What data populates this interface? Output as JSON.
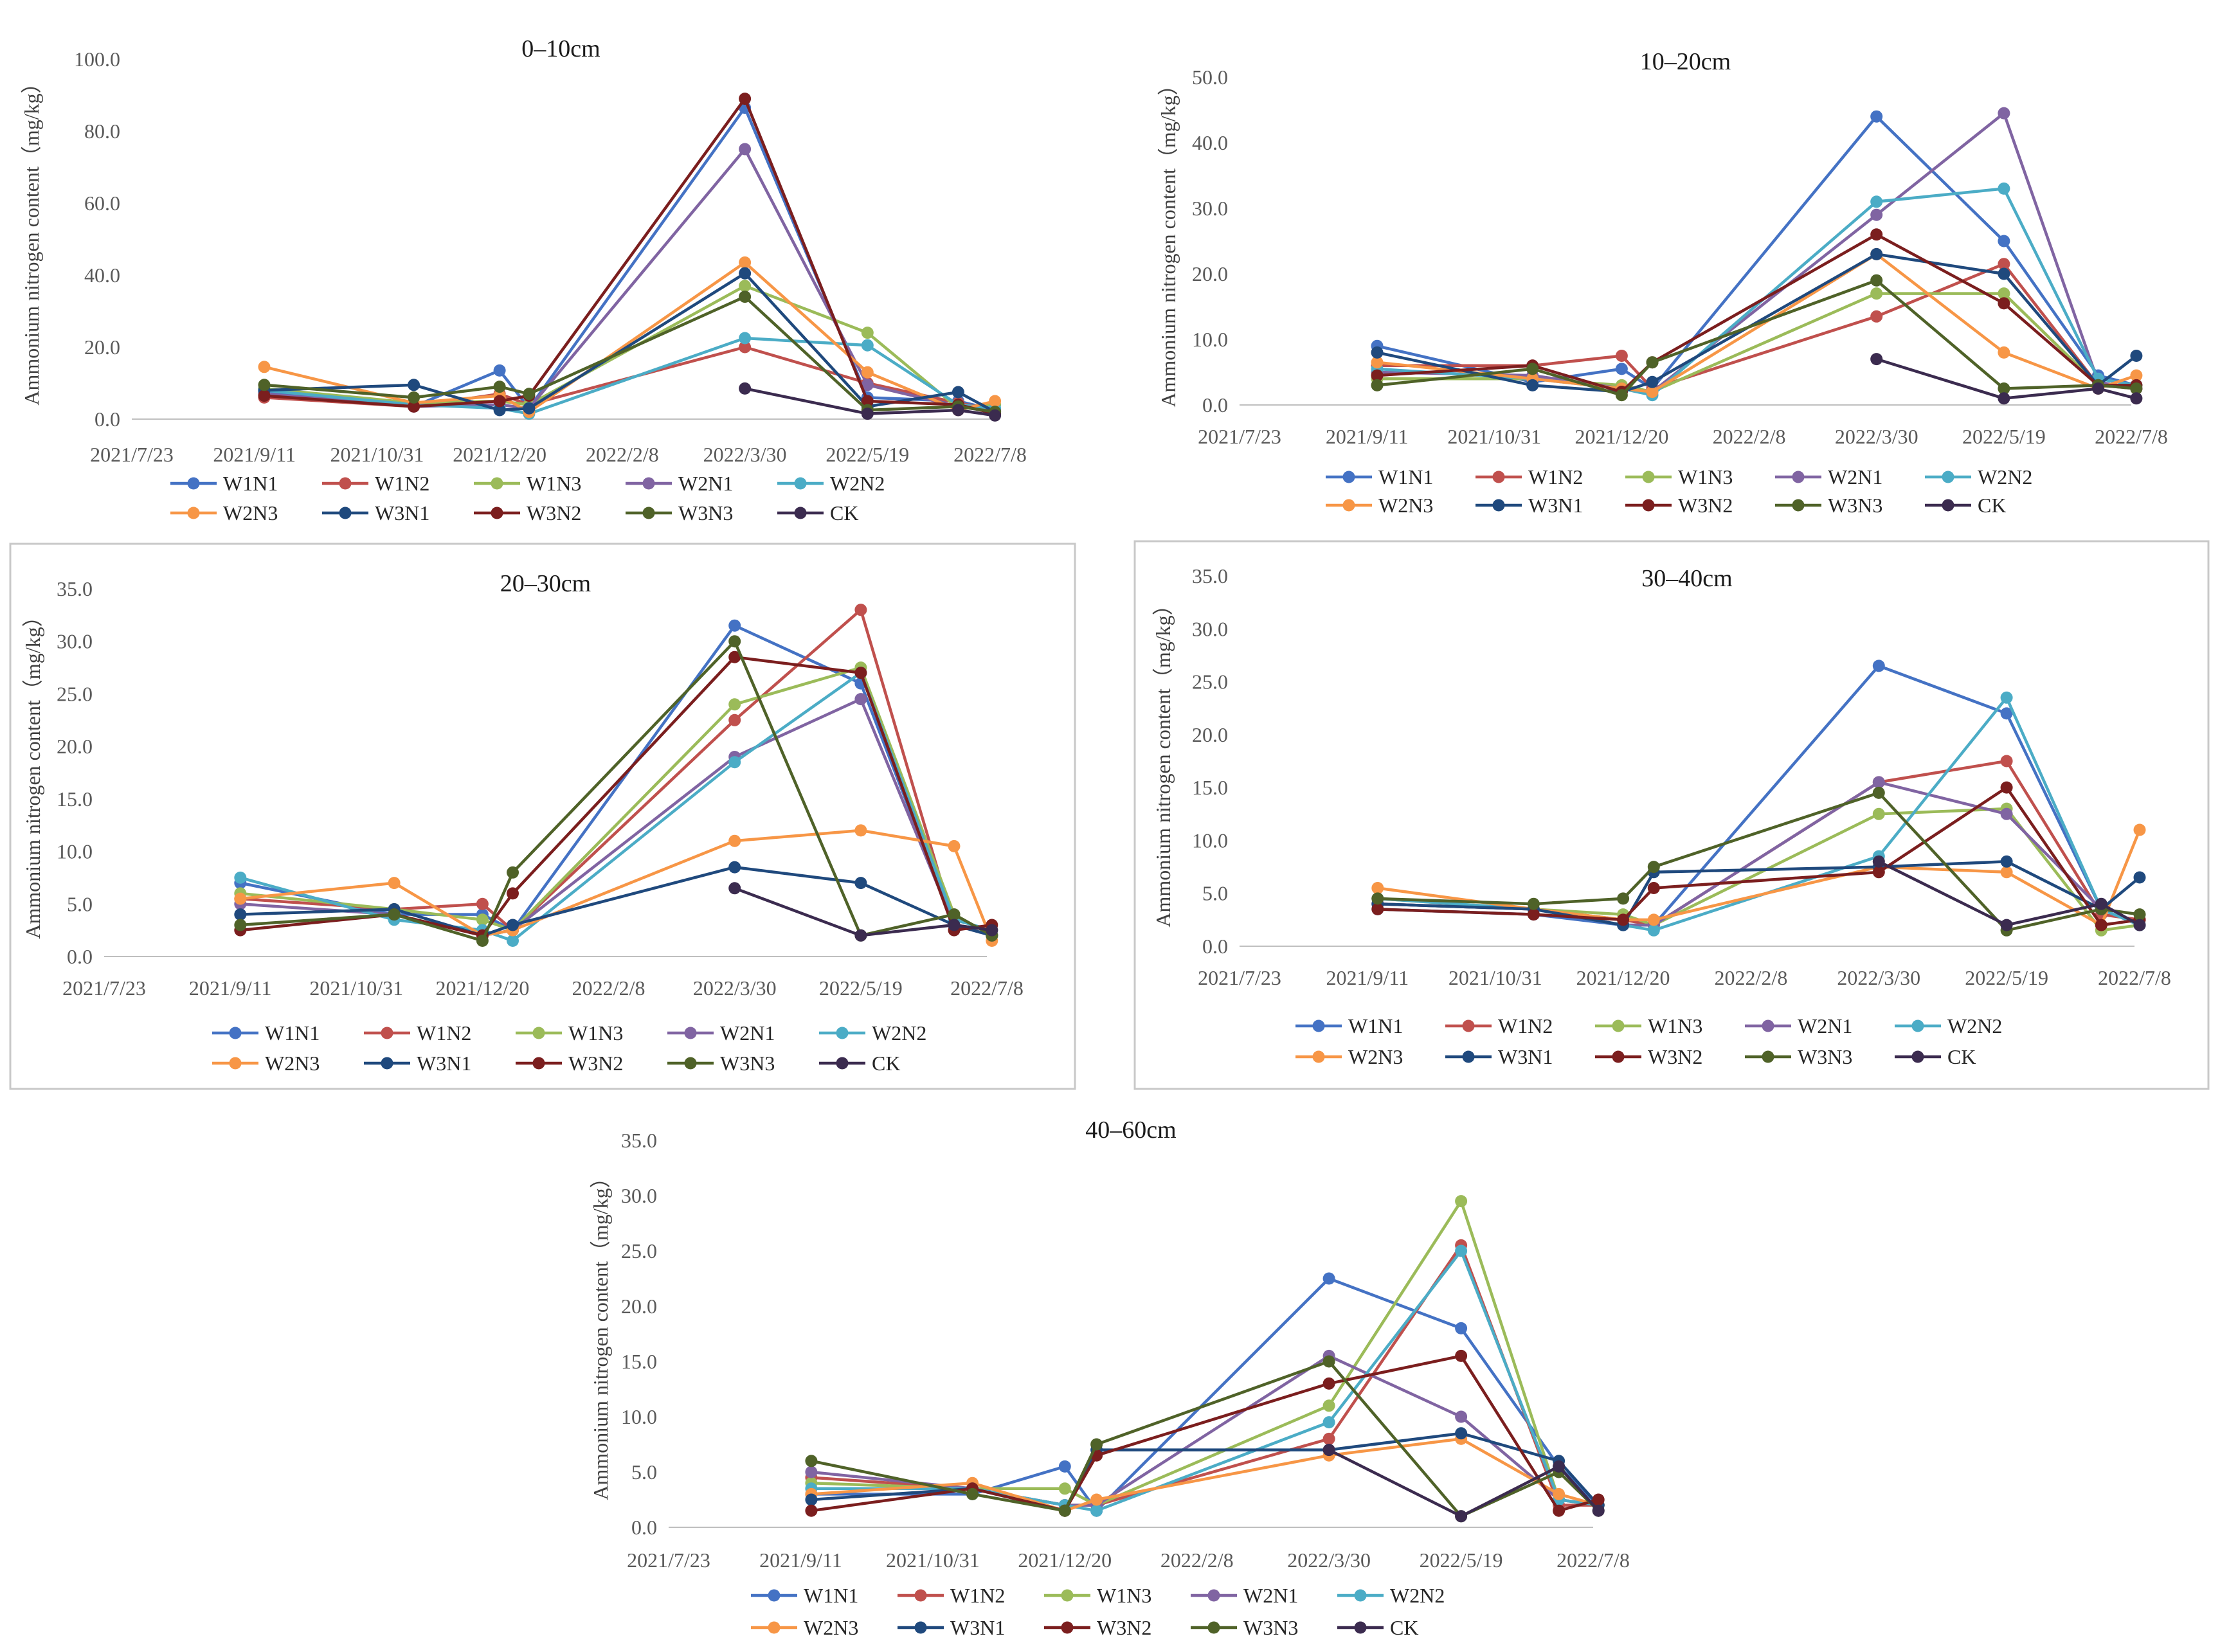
{
  "figure_colors": {
    "W1N1": "#4472C4",
    "W1N2": "#C0504D",
    "W1N3": "#9BBB59",
    "W2N1": "#8064A2",
    "W2N2": "#4BACC6",
    "W2N3": "#F79646",
    "W3N1": "#1F497D",
    "W3N2": "#7B1E1E",
    "W3N3": "#4F6228",
    "CK": "#3B2B4F"
  },
  "chart_data": [
    {
      "type": "line",
      "title": "0–10cm",
      "ylabel": "Ammonium nitrogen content（mg/kg）",
      "ylim": [
        0,
        100
      ],
      "ytick_labels": [
        "0.0",
        "20.0",
        "40.0",
        "60.0",
        "80.0",
        "100.0"
      ],
      "xtick_labels": [
        "2021/7/23",
        "2021/9/11",
        "2021/10/31",
        "2021/12/20",
        "2022/2/8",
        "2022/3/30",
        "2022/5/19",
        "2022/7/8"
      ],
      "x": [
        "2021/9/15",
        "2021/11/15",
        "2021/12/20",
        "2022/1/1",
        "2022/3/30",
        "2022/5/19",
        "2022/6/25",
        "2022/7/10"
      ],
      "series": [
        {
          "name": "W1N1",
          "values": [
            7.5,
            3.5,
            13.5,
            3.0,
            86.5,
            6.0,
            5.0,
            2.5
          ]
        },
        {
          "name": "W1N2",
          "values": [
            6.0,
            3.5,
            7.0,
            4.0,
            20.0,
            10.0,
            4.5,
            2.5
          ]
        },
        {
          "name": "W1N3",
          "values": [
            8.5,
            4.5,
            5.0,
            4.0,
            37.0,
            24.0,
            3.0,
            4.0
          ]
        },
        {
          "name": "W2N1",
          "values": [
            7.0,
            3.5,
            4.0,
            3.0,
            75.0,
            9.5,
            3.5,
            2.0
          ]
        },
        {
          "name": "W2N2",
          "values": [
            8.0,
            4.0,
            3.0,
            1.5,
            22.5,
            20.5,
            4.0,
            3.0
          ]
        },
        {
          "name": "W2N3",
          "values": [
            14.5,
            4.5,
            6.5,
            2.0,
            43.5,
            13.0,
            2.5,
            5.0
          ]
        },
        {
          "name": "W3N1",
          "values": [
            8.0,
            9.5,
            2.5,
            3.0,
            40.5,
            3.5,
            7.5,
            2.0
          ]
        },
        {
          "name": "W3N2",
          "values": [
            6.5,
            3.5,
            5.0,
            6.5,
            89.0,
            5.0,
            4.0,
            1.5
          ]
        },
        {
          "name": "W3N3",
          "values": [
            9.5,
            6.0,
            9.0,
            7.0,
            34.0,
            2.5,
            3.5,
            2.0
          ]
        },
        {
          "name": "CK",
          "values": [
            null,
            null,
            null,
            null,
            8.5,
            1.5,
            2.5,
            1.0
          ]
        }
      ],
      "legend_rows": [
        [
          "W1N1",
          "W1N2",
          "W1N3",
          "W2N1",
          "W2N2"
        ],
        [
          "W2N3",
          "W3N1",
          "W3N2",
          "W3N3",
          "CK"
        ]
      ]
    },
    {
      "type": "line",
      "title": "10–20cm",
      "ylabel": "Ammonium nitrogen content（mg/kg）",
      "ylim": [
        0,
        50
      ],
      "ytick_labels": [
        "0.0",
        "10.0",
        "20.0",
        "30.0",
        "40.0",
        "50.0"
      ],
      "xtick_labels": [
        "2021/7/23",
        "2021/9/11",
        "2021/10/31",
        "2021/12/20",
        "2022/2/8",
        "2022/3/30",
        "2022/5/19",
        "2022/7/8"
      ],
      "x": [
        "2021/9/15",
        "2021/11/15",
        "2021/12/20",
        "2022/1/1",
        "2022/3/30",
        "2022/5/19",
        "2022/6/25",
        "2022/7/10"
      ],
      "series": [
        {
          "name": "W1N1",
          "values": [
            9.0,
            3.5,
            5.5,
            2.5,
            44.0,
            25.0,
            4.5,
            3.0
          ]
        },
        {
          "name": "W1N2",
          "values": [
            6.0,
            6.0,
            7.5,
            2.5,
            13.5,
            21.5,
            3.0,
            2.5
          ]
        },
        {
          "name": "W1N3",
          "values": [
            4.0,
            4.0,
            3.0,
            2.0,
            17.0,
            17.0,
            3.0,
            3.0
          ]
        },
        {
          "name": "W2N1",
          "values": [
            5.0,
            4.5,
            2.5,
            2.0,
            29.0,
            44.5,
            3.5,
            2.5
          ]
        },
        {
          "name": "W2N2",
          "values": [
            5.5,
            4.0,
            2.5,
            1.5,
            31.0,
            33.0,
            4.0,
            3.0
          ]
        },
        {
          "name": "W2N3",
          "values": [
            6.5,
            4.0,
            2.5,
            2.0,
            23.0,
            8.0,
            2.5,
            4.5
          ]
        },
        {
          "name": "W3N1",
          "values": [
            8.0,
            3.0,
            2.0,
            3.5,
            23.0,
            20.0,
            3.0,
            7.5
          ]
        },
        {
          "name": "W3N2",
          "values": [
            4.5,
            6.0,
            2.0,
            6.5,
            26.0,
            15.5,
            3.0,
            3.0
          ]
        },
        {
          "name": "W3N3",
          "values": [
            3.0,
            5.5,
            1.5,
            6.5,
            19.0,
            2.5,
            3.0,
            2.5
          ]
        },
        {
          "name": "CK",
          "values": [
            null,
            null,
            null,
            null,
            7.0,
            1.0,
            2.5,
            1.0
          ]
        }
      ],
      "legend_rows": [
        [
          "W1N1",
          "W1N2",
          "W1N3",
          "W2N1",
          "W2N2"
        ],
        [
          "W2N3",
          "W3N1",
          "W3N2",
          "W3N3",
          "CK"
        ]
      ]
    },
    {
      "type": "line",
      "title": "20–30cm",
      "ylabel": "Ammonium nitrogen content（mg/kg）",
      "ylim": [
        0,
        35
      ],
      "ytick_labels": [
        "0.0",
        "5.0",
        "10.0",
        "15.0",
        "20.0",
        "25.0",
        "30.0",
        "35.0"
      ],
      "xtick_labels": [
        "2021/7/23",
        "2021/9/11",
        "2021/10/31",
        "2021/12/20",
        "2022/2/8",
        "2022/3/30",
        "2022/5/19",
        "2022/7/8"
      ],
      "x": [
        "2021/9/15",
        "2021/11/15",
        "2021/12/20",
        "2022/1/1",
        "2022/3/30",
        "2022/5/19",
        "2022/6/25",
        "2022/7/10"
      ],
      "series": [
        {
          "name": "W1N1",
          "values": [
            7.0,
            4.0,
            4.0,
            2.5,
            31.5,
            26.0,
            3.0,
            2.0
          ]
        },
        {
          "name": "W1N2",
          "values": [
            5.5,
            4.5,
            5.0,
            2.5,
            22.5,
            33.0,
            3.0,
            2.5
          ]
        },
        {
          "name": "W1N3",
          "values": [
            6.0,
            4.5,
            3.5,
            2.5,
            24.0,
            27.5,
            4.0,
            2.0
          ]
        },
        {
          "name": "W2N1",
          "values": [
            5.0,
            4.0,
            2.0,
            2.5,
            19.0,
            24.5,
            3.0,
            2.0
          ]
        },
        {
          "name": "W2N2",
          "values": [
            7.5,
            3.5,
            2.5,
            1.5,
            18.5,
            27.0,
            3.5,
            2.5
          ]
        },
        {
          "name": "W2N3",
          "values": [
            5.5,
            7.0,
            2.0,
            2.5,
            11.0,
            12.0,
            10.5,
            1.5
          ]
        },
        {
          "name": "W3N1",
          "values": [
            4.0,
            4.5,
            2.0,
            3.0,
            8.5,
            7.0,
            3.0,
            2.0
          ]
        },
        {
          "name": "W3N2",
          "values": [
            2.5,
            4.0,
            2.0,
            6.0,
            28.5,
            27.0,
            2.5,
            3.0
          ]
        },
        {
          "name": "W3N3",
          "values": [
            3.0,
            4.0,
            1.5,
            8.0,
            30.0,
            2.0,
            4.0,
            2.0
          ]
        },
        {
          "name": "CK",
          "values": [
            null,
            null,
            null,
            null,
            6.5,
            2.0,
            3.0,
            2.5
          ]
        }
      ],
      "legend_rows": [
        [
          "W1N1",
          "W1N2",
          "W1N3",
          "W2N1",
          "W2N2"
        ],
        [
          "W2N3",
          "W3N1",
          "W3N2",
          "W3N3",
          "CK"
        ]
      ]
    },
    {
      "type": "line",
      "title": "30–40cm",
      "ylabel": "Ammonium nitrogen content（mg/kg）",
      "ylim": [
        0,
        35
      ],
      "ytick_labels": [
        "0.0",
        "5.0",
        "10.0",
        "15.0",
        "20.0",
        "25.0",
        "30.0",
        "35.0"
      ],
      "xtick_labels": [
        "2021/7/23",
        "2021/9/11",
        "2021/10/31",
        "2021/12/20",
        "2022/2/8",
        "2022/3/30",
        "2022/5/19",
        "2022/7/8"
      ],
      "x": [
        "2021/9/15",
        "2021/11/15",
        "2021/12/20",
        "2022/1/1",
        "2022/3/30",
        "2022/5/19",
        "2022/6/25",
        "2022/7/10"
      ],
      "series": [
        {
          "name": "W1N1",
          "values": [
            3.5,
            3.0,
            2.0,
            2.0,
            26.5,
            22.0,
            3.5,
            2.0
          ]
        },
        {
          "name": "W1N2",
          "values": [
            4.0,
            3.5,
            2.5,
            2.0,
            15.5,
            17.5,
            3.0,
            2.5
          ]
        },
        {
          "name": "W1N3",
          "values": [
            4.5,
            3.5,
            3.0,
            2.0,
            12.5,
            13.0,
            1.5,
            2.0
          ]
        },
        {
          "name": "W2N1",
          "values": [
            4.0,
            3.5,
            2.0,
            2.0,
            15.5,
            12.5,
            3.5,
            2.0
          ]
        },
        {
          "name": "W2N2",
          "values": [
            4.5,
            3.5,
            2.0,
            1.5,
            8.5,
            23.5,
            3.5,
            2.0
          ]
        },
        {
          "name": "W2N3",
          "values": [
            5.5,
            3.5,
            2.5,
            2.5,
            7.5,
            7.0,
            2.0,
            11.0
          ]
        },
        {
          "name": "W3N1",
          "values": [
            4.0,
            3.5,
            2.0,
            7.0,
            7.5,
            8.0,
            3.5,
            6.5
          ]
        },
        {
          "name": "W3N2",
          "values": [
            3.5,
            3.0,
            2.5,
            5.5,
            7.0,
            15.0,
            2.0,
            2.5
          ]
        },
        {
          "name": "W3N3",
          "values": [
            4.5,
            4.0,
            4.5,
            7.5,
            14.5,
            1.5,
            3.5,
            3.0
          ]
        },
        {
          "name": "CK",
          "values": [
            null,
            null,
            null,
            null,
            8.0,
            2.0,
            4.0,
            2.0
          ]
        }
      ],
      "legend_rows": [
        [
          "W1N1",
          "W1N2",
          "W1N3",
          "W2N1",
          "W2N2"
        ],
        [
          "W2N3",
          "W3N1",
          "W3N2",
          "W3N3",
          "CK"
        ]
      ]
    },
    {
      "type": "line",
      "title": "40–60cm",
      "ylabel": "Ammonium nitrogen content（mg/kg）",
      "ylim": [
        0,
        35
      ],
      "ytick_labels": [
        "0.0",
        "5.0",
        "10.0",
        "15.0",
        "20.0",
        "25.0",
        "30.0",
        "35.0"
      ],
      "xtick_labels": [
        "2021/7/23",
        "2021/9/11",
        "2021/10/31",
        "2021/12/20",
        "2022/2/8",
        "2022/3/30",
        "2022/5/19",
        "2022/7/8"
      ],
      "x": [
        "2021/9/15",
        "2021/11/15",
        "2021/12/20",
        "2022/1/1",
        "2022/3/30",
        "2022/5/19",
        "2022/6/25",
        "2022/7/10"
      ],
      "series": [
        {
          "name": "W1N1",
          "values": [
            3.0,
            3.0,
            5.5,
            1.5,
            22.5,
            18.0,
            5.5,
            2.0
          ]
        },
        {
          "name": "W1N2",
          "values": [
            4.5,
            3.5,
            2.0,
            2.0,
            8.0,
            25.5,
            2.0,
            2.0
          ]
        },
        {
          "name": "W1N3",
          "values": [
            4.0,
            3.5,
            3.5,
            2.0,
            11.0,
            29.5,
            2.5,
            2.0
          ]
        },
        {
          "name": "W2N1",
          "values": [
            5.0,
            3.5,
            2.0,
            2.0,
            15.5,
            10.0,
            2.5,
            2.0
          ]
        },
        {
          "name": "W2N2",
          "values": [
            3.5,
            3.5,
            2.0,
            1.5,
            9.5,
            25.0,
            2.5,
            2.0
          ]
        },
        {
          "name": "W2N3",
          "values": [
            3.0,
            4.0,
            1.5,
            2.5,
            6.5,
            8.0,
            3.0,
            2.0
          ]
        },
        {
          "name": "W3N1",
          "values": [
            2.5,
            3.5,
            1.5,
            7.0,
            7.0,
            8.5,
            6.0,
            2.0
          ]
        },
        {
          "name": "W3N2",
          "values": [
            1.5,
            3.5,
            1.5,
            6.5,
            13.0,
            15.5,
            1.5,
            2.5
          ]
        },
        {
          "name": "W3N3",
          "values": [
            6.0,
            3.0,
            1.5,
            7.5,
            15.0,
            1.0,
            5.0,
            1.5
          ]
        },
        {
          "name": "CK",
          "values": [
            null,
            null,
            null,
            null,
            7.0,
            1.0,
            5.5,
            1.5
          ]
        }
      ],
      "legend_rows": [
        [
          "W1N1",
          "W1N2",
          "W1N3",
          "W2N1",
          "W2N2"
        ],
        [
          "W2N3",
          "W3N1",
          "W3N2",
          "W3N3",
          "CK"
        ]
      ]
    }
  ]
}
